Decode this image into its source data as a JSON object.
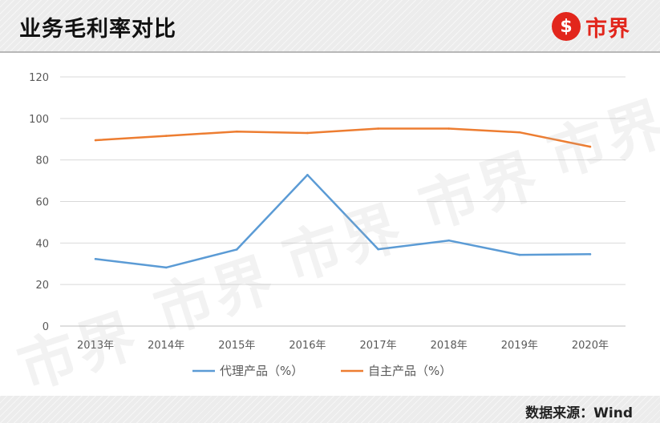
{
  "header": {
    "title": "业务毛利率对比",
    "logo_symbol": "$",
    "logo_text": "市界",
    "logo_color": "#e2261c"
  },
  "footer": {
    "source": "数据来源：Wind"
  },
  "watermark_text": "市界",
  "chart_data": {
    "type": "line",
    "categories": [
      "2013年",
      "2014年",
      "2015年",
      "2016年",
      "2017年",
      "2018年",
      "2019年",
      "2020年"
    ],
    "series": [
      {
        "name": "代理产品（%）",
        "color": "#5b9bd5",
        "values": [
          32.3,
          28.2,
          36.9,
          72.8,
          37.0,
          41.2,
          34.3,
          34.6
        ]
      },
      {
        "name": "自主产品（%）",
        "color": "#ed7d31",
        "values": [
          89.5,
          91.6,
          93.7,
          93.0,
          95.1,
          95.1,
          93.3,
          86.4
        ]
      }
    ],
    "yticks": [
      0,
      20,
      40,
      60,
      80,
      100,
      120
    ],
    "ylim": [
      0,
      120
    ],
    "grid": true,
    "legend_position": "bottom",
    "xlabel": "",
    "ylabel": ""
  }
}
